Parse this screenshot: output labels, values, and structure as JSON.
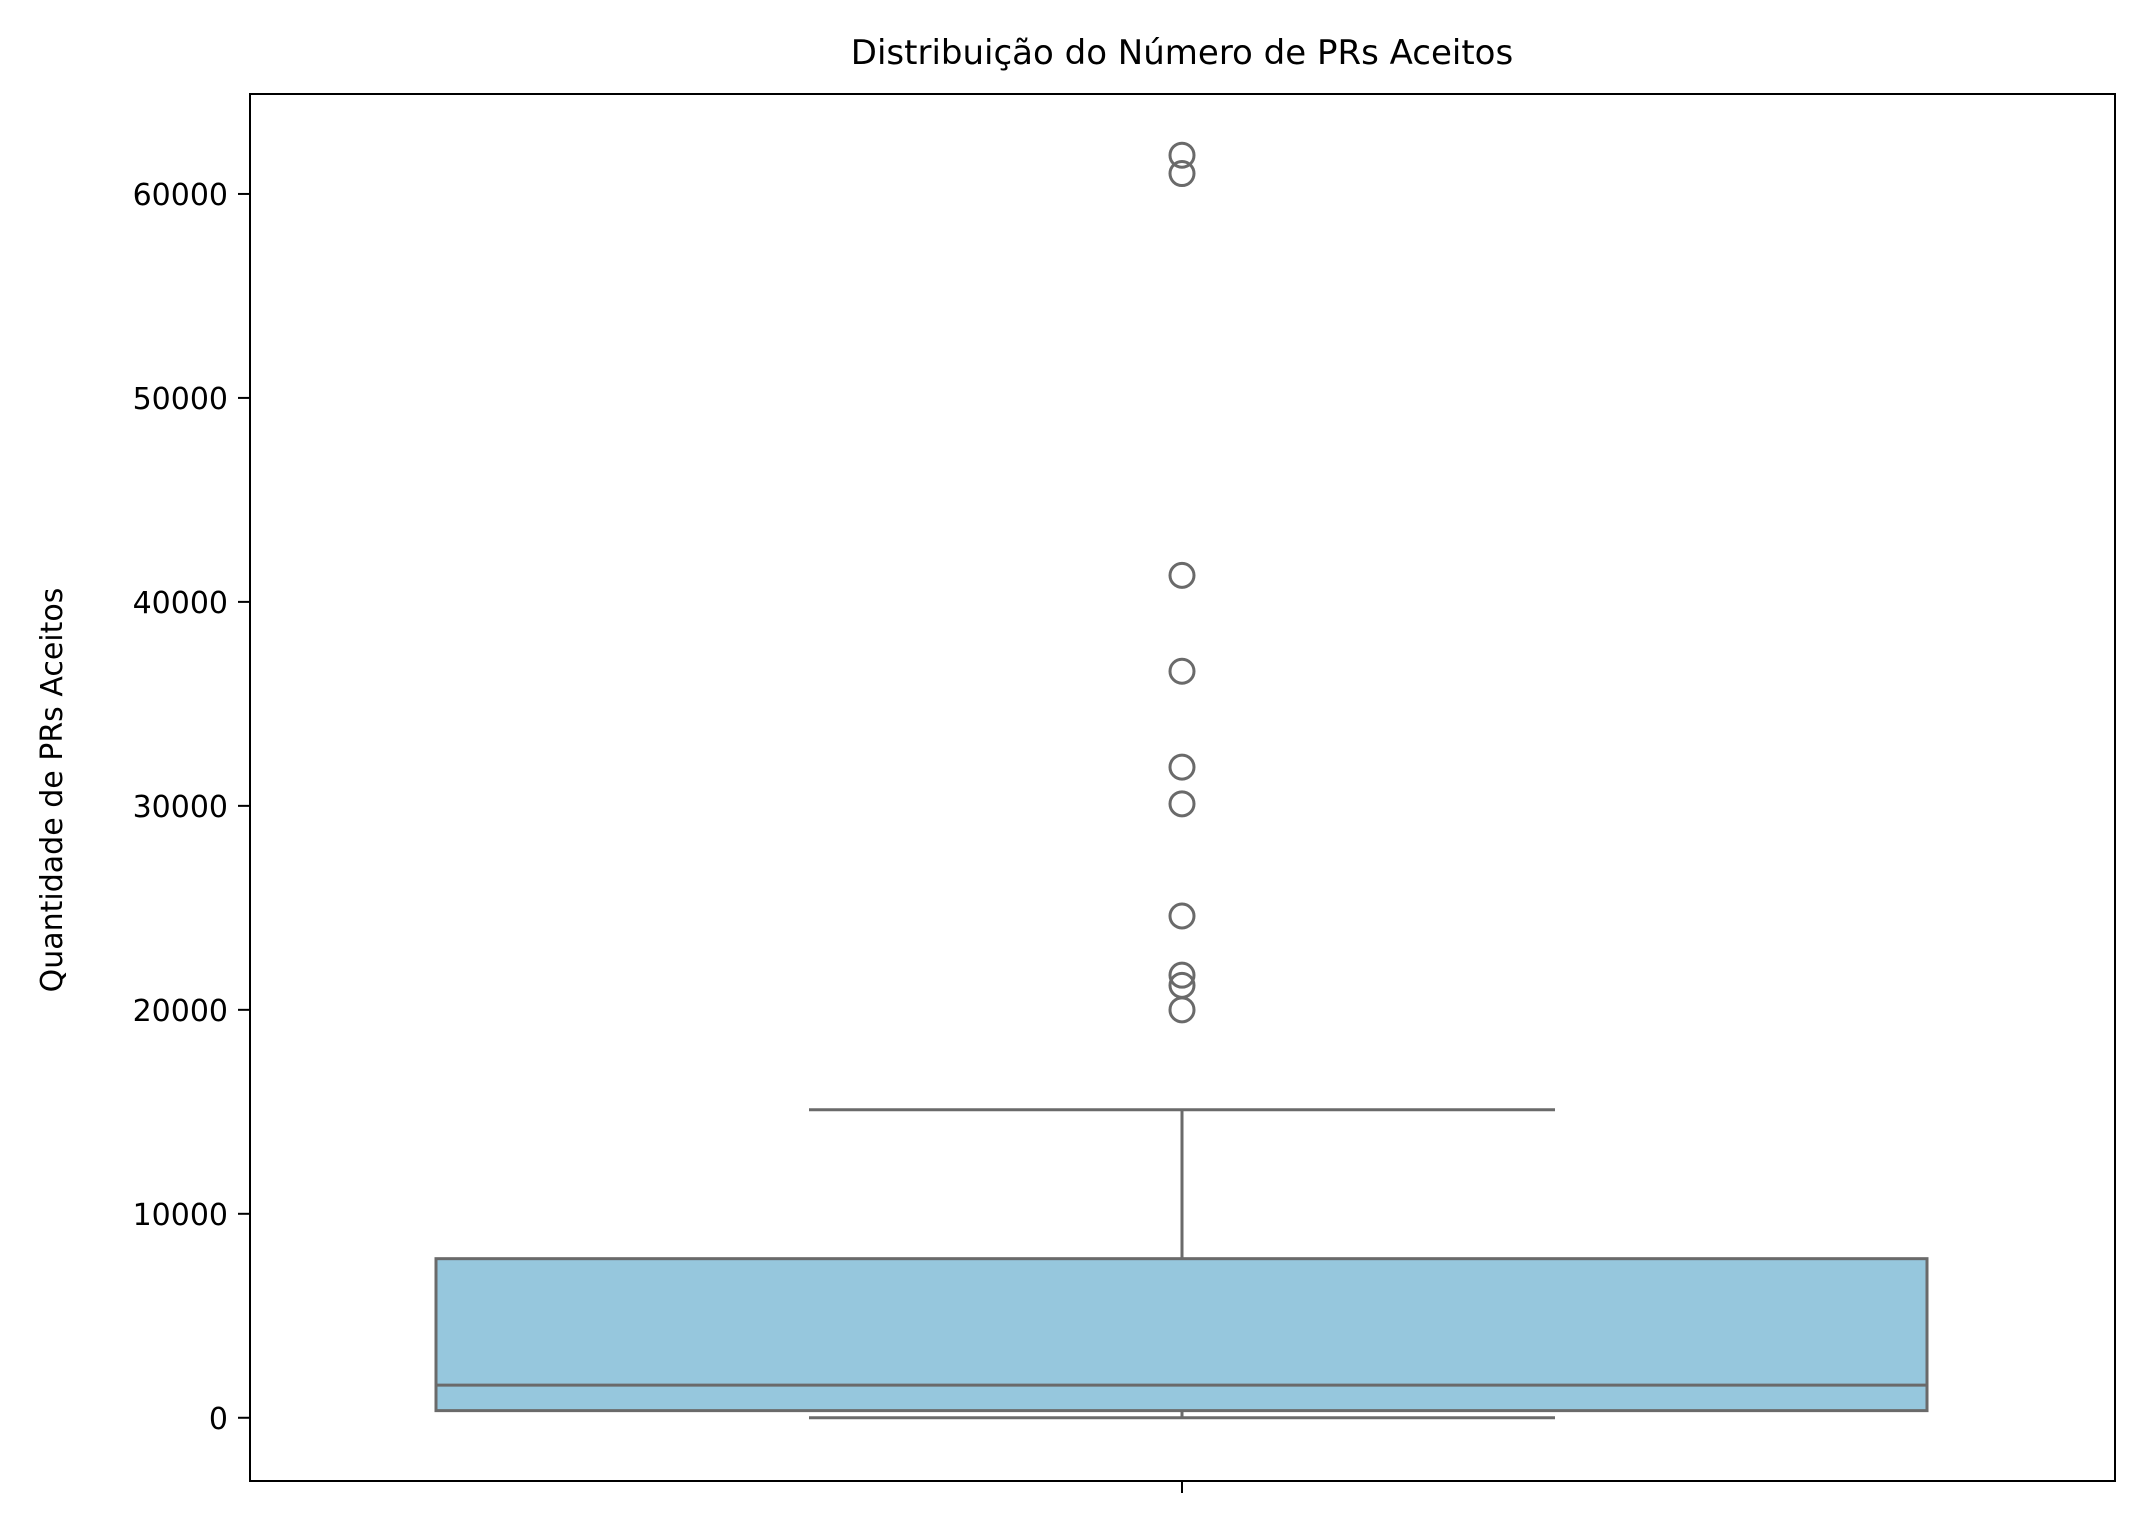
{
  "chart_data": {
    "type": "boxplot",
    "title": "Distribuição do Número de PRs Aceitos",
    "xlabel": "",
    "ylabel": "Quantidade de PRs Aceitos",
    "ylim": [
      -3100,
      64900
    ],
    "yticks": [
      0,
      10000,
      20000,
      30000,
      40000,
      50000,
      60000
    ],
    "ytick_labels": [
      "0",
      "10000",
      "20000",
      "30000",
      "40000",
      "50000",
      "60000"
    ],
    "grid": false,
    "colors": {
      "box_fill": "#96c7dd",
      "box_line": "#6a6a6a"
    },
    "box": {
      "whisker_low": 0,
      "q1": 350,
      "median": 1600,
      "q3": 7800,
      "whisker_high": 15100
    },
    "outliers": [
      61900,
      61000,
      41300,
      36600,
      31900,
      30100,
      24600,
      21700,
      21200,
      20000
    ]
  }
}
